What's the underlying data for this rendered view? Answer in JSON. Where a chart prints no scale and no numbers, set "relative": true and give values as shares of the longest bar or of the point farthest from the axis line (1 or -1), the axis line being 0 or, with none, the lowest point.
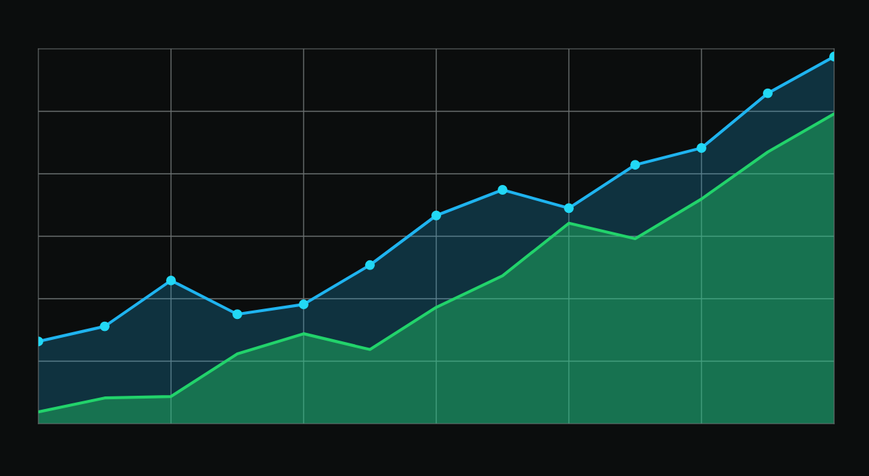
{
  "chart_data": {
    "type": "area",
    "relative": true,
    "grid": true,
    "line_style": "solid",
    "categories": [
      null,
      null,
      null,
      null,
      null,
      null,
      null,
      null,
      null,
      null,
      null,
      null,
      null
    ],
    "series": [
      {
        "color": "#1fb4f0",
        "marker": "circle",
        "values": [
          0.224,
          0.265,
          0.39,
          0.298,
          0.325,
          0.432,
          0.567,
          0.637,
          0.587,
          0.705,
          0.751,
          0.9,
          1
        ]
      },
      {
        "color": "#22d36b",
        "marker": "none",
        "values": [
          0.032,
          0.07,
          0.074,
          0.19,
          0.245,
          0.202,
          0.317,
          0.403,
          0.546,
          0.504,
          0.612,
          0.74,
          0.844
        ]
      }
    ]
  }
}
